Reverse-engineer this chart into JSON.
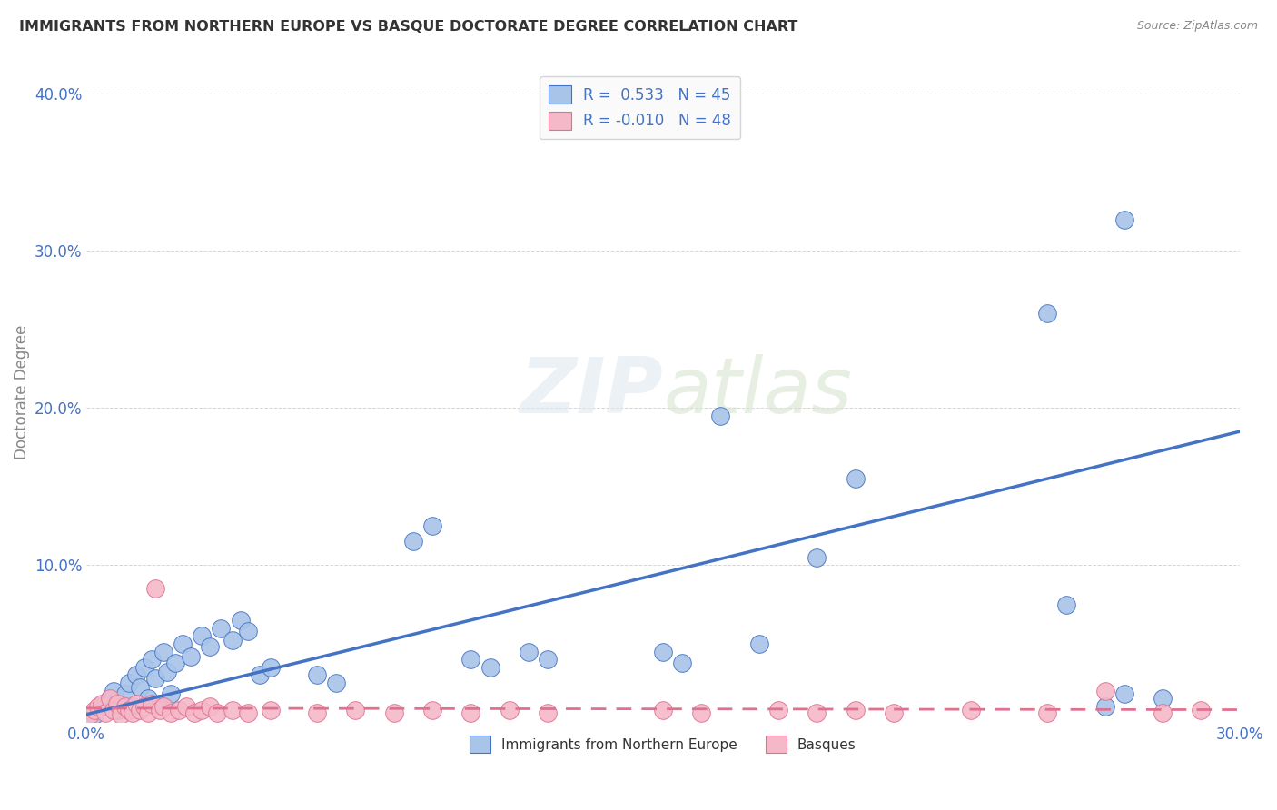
{
  "title": "IMMIGRANTS FROM NORTHERN EUROPE VS BASQUE DOCTORATE DEGREE CORRELATION CHART",
  "source": "Source: ZipAtlas.com",
  "ylabel": "Doctorate Degree",
  "xlim": [
    0.0,
    0.3
  ],
  "ylim": [
    0.0,
    0.42
  ],
  "blue_color": "#a8c4e8",
  "pink_color": "#f4b8c8",
  "line_blue": "#4472c4",
  "line_pink": "#e07090",
  "blue_scatter": [
    [
      0.002,
      0.005
    ],
    [
      0.004,
      0.01
    ],
    [
      0.006,
      0.015
    ],
    [
      0.007,
      0.02
    ],
    [
      0.008,
      0.008
    ],
    [
      0.009,
      0.012
    ],
    [
      0.01,
      0.018
    ],
    [
      0.011,
      0.025
    ],
    [
      0.012,
      0.01
    ],
    [
      0.013,
      0.03
    ],
    [
      0.014,
      0.022
    ],
    [
      0.015,
      0.035
    ],
    [
      0.016,
      0.015
    ],
    [
      0.017,
      0.04
    ],
    [
      0.018,
      0.028
    ],
    [
      0.019,
      0.012
    ],
    [
      0.02,
      0.045
    ],
    [
      0.021,
      0.032
    ],
    [
      0.022,
      0.018
    ],
    [
      0.023,
      0.038
    ],
    [
      0.025,
      0.05
    ],
    [
      0.027,
      0.042
    ],
    [
      0.03,
      0.055
    ],
    [
      0.032,
      0.048
    ],
    [
      0.035,
      0.06
    ],
    [
      0.038,
      0.052
    ],
    [
      0.04,
      0.065
    ],
    [
      0.042,
      0.058
    ],
    [
      0.045,
      0.03
    ],
    [
      0.048,
      0.035
    ],
    [
      0.06,
      0.03
    ],
    [
      0.065,
      0.025
    ],
    [
      0.085,
      0.115
    ],
    [
      0.09,
      0.125
    ],
    [
      0.1,
      0.04
    ],
    [
      0.105,
      0.035
    ],
    [
      0.115,
      0.045
    ],
    [
      0.12,
      0.04
    ],
    [
      0.15,
      0.045
    ],
    [
      0.155,
      0.038
    ],
    [
      0.165,
      0.195
    ],
    [
      0.175,
      0.05
    ],
    [
      0.19,
      0.105
    ],
    [
      0.2,
      0.155
    ],
    [
      0.25,
      0.26
    ],
    [
      0.255,
      0.075
    ],
    [
      0.265,
      0.01
    ],
    [
      0.27,
      0.32
    ],
    [
      0.27,
      0.018
    ],
    [
      0.28,
      0.015
    ]
  ],
  "pink_scatter": [
    [
      0.001,
      0.005
    ],
    [
      0.002,
      0.008
    ],
    [
      0.003,
      0.01
    ],
    [
      0.004,
      0.012
    ],
    [
      0.005,
      0.006
    ],
    [
      0.006,
      0.015
    ],
    [
      0.007,
      0.008
    ],
    [
      0.008,
      0.012
    ],
    [
      0.009,
      0.005
    ],
    [
      0.01,
      0.01
    ],
    [
      0.011,
      0.008
    ],
    [
      0.012,
      0.006
    ],
    [
      0.013,
      0.012
    ],
    [
      0.014,
      0.008
    ],
    [
      0.015,
      0.01
    ],
    [
      0.016,
      0.006
    ],
    [
      0.017,
      0.012
    ],
    [
      0.018,
      0.085
    ],
    [
      0.019,
      0.008
    ],
    [
      0.02,
      0.01
    ],
    [
      0.022,
      0.006
    ],
    [
      0.024,
      0.008
    ],
    [
      0.026,
      0.01
    ],
    [
      0.028,
      0.006
    ],
    [
      0.03,
      0.008
    ],
    [
      0.032,
      0.01
    ],
    [
      0.034,
      0.006
    ],
    [
      0.038,
      0.008
    ],
    [
      0.042,
      0.006
    ],
    [
      0.048,
      0.008
    ],
    [
      0.06,
      0.006
    ],
    [
      0.07,
      0.008
    ],
    [
      0.08,
      0.006
    ],
    [
      0.09,
      0.008
    ],
    [
      0.1,
      0.006
    ],
    [
      0.11,
      0.008
    ],
    [
      0.12,
      0.006
    ],
    [
      0.15,
      0.008
    ],
    [
      0.16,
      0.006
    ],
    [
      0.18,
      0.008
    ],
    [
      0.19,
      0.006
    ],
    [
      0.2,
      0.008
    ],
    [
      0.21,
      0.006
    ],
    [
      0.23,
      0.008
    ],
    [
      0.25,
      0.006
    ],
    [
      0.265,
      0.02
    ],
    [
      0.28,
      0.006
    ],
    [
      0.29,
      0.008
    ]
  ],
  "blue_line_x": [
    0.0,
    0.3
  ],
  "blue_line_y": [
    0.005,
    0.185
  ],
  "pink_line_x": [
    0.0,
    0.3
  ],
  "pink_line_y": [
    0.009,
    0.008
  ]
}
